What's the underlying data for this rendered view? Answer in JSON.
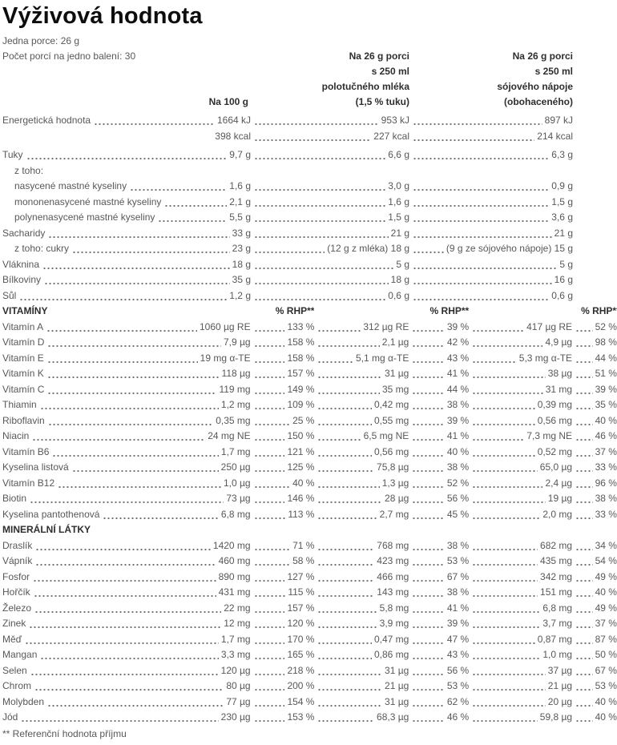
{
  "title": "Výživová hodnota",
  "colors": {
    "body_text": "#58585a",
    "heading_text": "#2e2e30",
    "title_text": "#0d0d0d"
  },
  "header": {
    "serving_line1": "Jedna porce: 26 g",
    "serving_line2": "Počet porcí na jedno balení: 30",
    "col1": "Na 100 g",
    "col2_lines": [
      "Na 26 g porci",
      "s 250 ml",
      "polotučného mléka",
      "(1,5 % tuku)"
    ],
    "col3_lines": [
      "Na 26 g porci",
      "s 250 ml",
      "sójového nápoje",
      "(obohaceného)"
    ]
  },
  "table": {
    "rhp_header": "% RHP**",
    "rows": [
      {
        "label": "Energetická hodnota",
        "kind": "g3",
        "c": [
          "1664 kJ",
          "953 kJ",
          "897 kJ"
        ]
      },
      {
        "label": "",
        "kind": "g3",
        "noLead1": true,
        "c": [
          "398 kcal",
          "227 kcal",
          "214 kcal"
        ]
      },
      {
        "label": "Tuky",
        "kind": "g3",
        "gap": true,
        "c": [
          "9,7 g",
          "6,6 g",
          "6,3 g"
        ]
      },
      {
        "label": "z toho:",
        "kind": "label",
        "indent": 1
      },
      {
        "label": "nasycené mastné kyseliny",
        "kind": "g3",
        "indent": 1,
        "c": [
          "1,6 g",
          "3,0 g",
          "0,9 g"
        ]
      },
      {
        "label": "mononenasycené mastné kyseliny",
        "kind": "g3",
        "indent": 1,
        "c": [
          "2,1 g",
          "1,6 g",
          "1,5 g"
        ]
      },
      {
        "label": "polynenasycené mastné kyseliny",
        "kind": "g3",
        "indent": 1,
        "c": [
          "5,5 g",
          "1,5 g",
          "3,6 g"
        ]
      },
      {
        "label": "Sacharidy",
        "kind": "g3",
        "c": [
          "33 g",
          "21 g",
          "21 g"
        ]
      },
      {
        "label": "z toho: cukry",
        "kind": "g3",
        "indent": 1,
        "c": [
          "23 g",
          "(12 g z mléka) 18 g",
          "(9 g ze sójového nápoje) 15 g"
        ]
      },
      {
        "label": "Vláknina",
        "kind": "g3",
        "c": [
          "18 g",
          "5 g",
          "5 g"
        ]
      },
      {
        "label": "Bílkoviny",
        "kind": "g3",
        "c": [
          "35 g",
          "18 g",
          "16 g"
        ]
      },
      {
        "label": "Sůl",
        "kind": "g3",
        "c": [
          "1,2 g",
          "0,6 g",
          "0,6 g"
        ]
      },
      {
        "label": "VITAMÍNY",
        "kind": "sechdr"
      },
      {
        "label": "Vitamín A",
        "kind": "g6",
        "c": [
          "1060 µg RE",
          "133 %",
          "312 µg RE",
          "39 %",
          "417 µg RE",
          "52 %"
        ]
      },
      {
        "label": "Vitamín D",
        "kind": "g6",
        "c": [
          "7,9 µg",
          "158 %",
          "2,1 µg",
          "42 %",
          "4,9 µg",
          "98 %"
        ]
      },
      {
        "label": "Vitamín E",
        "kind": "g6",
        "c": [
          "19 mg α-TE",
          "158 %",
          "5,1 mg α-TE",
          "43 %",
          "5,3 mg α-TE",
          "44 %"
        ]
      },
      {
        "label": "Vitamín K",
        "kind": "g6",
        "c": [
          "118 µg",
          "157 %",
          "31 µg",
          "41 %",
          "38 µg",
          "51 %"
        ]
      },
      {
        "label": "Vitamín C",
        "kind": "g6",
        "c": [
          "119 mg",
          "149 %",
          "35 mg",
          "44 %",
          "31 mg",
          "39 %"
        ]
      },
      {
        "label": "Thiamin",
        "kind": "g6",
        "c": [
          "1,2 mg",
          "109 %",
          "0,42 mg",
          "38 %",
          "0,39 mg",
          "35 %"
        ]
      },
      {
        "label": "Riboflavin",
        "kind": "g6",
        "c": [
          "0,35 mg",
          "25 %",
          "0,55 mg",
          "39 %",
          "0,56 mg",
          "40 %"
        ]
      },
      {
        "label": "Niacin",
        "kind": "g6",
        "c": [
          "24 mg NE",
          "150 %",
          "6,5 mg NE",
          "41 %",
          "7,3 mg NE",
          "46 %"
        ]
      },
      {
        "label": "Vitamín B6",
        "kind": "g6",
        "c": [
          "1,7 mg",
          "121 %",
          "0,56 mg",
          "40 %",
          "0,52 mg",
          "37 %"
        ]
      },
      {
        "label": "Kyselina listová",
        "kind": "g6",
        "c": [
          "250 µg",
          "125 %",
          "75,8 µg",
          "38 %",
          "65,0 µg",
          "33 %"
        ]
      },
      {
        "label": "Vitamín B12",
        "kind": "g6",
        "c": [
          "1,0 µg",
          "40 %",
          "1,3 µg",
          "52 %",
          "2,4 µg",
          "96 %"
        ]
      },
      {
        "label": "Biotin",
        "kind": "g6",
        "c": [
          "73 µg",
          "146 %",
          "28 µg",
          "56 %",
          "19 µg",
          "38 %"
        ]
      },
      {
        "label": "Kyselina pantothenová",
        "kind": "g6",
        "c": [
          "6,8 mg",
          "113 %",
          "2,7 mg",
          "45 %",
          "2,0 mg",
          "33 %"
        ]
      },
      {
        "label": "MINERÁLNÍ LÁTKY",
        "kind": "sec"
      },
      {
        "label": "Draslík",
        "kind": "g6",
        "c": [
          "1420 mg",
          "71 %",
          "768 mg",
          "38 %",
          "682 mg",
          "34 %"
        ]
      },
      {
        "label": "Vápník",
        "kind": "g6",
        "c": [
          "460 mg",
          "58 %",
          "423 mg",
          "53 %",
          "435 mg",
          "54 %"
        ]
      },
      {
        "label": "Fosfor",
        "kind": "g6",
        "c": [
          "890 mg",
          "127 %",
          "466 mg",
          "67 %",
          "342 mg",
          "49 %"
        ]
      },
      {
        "label": "Hořčík",
        "kind": "g6",
        "c": [
          "431 mg",
          "115 %",
          "143 mg",
          "38 %",
          "151 mg",
          "40 %"
        ]
      },
      {
        "label": "Železo",
        "kind": "g6",
        "c": [
          "22 mg",
          "157 %",
          "5,8 mg",
          "41 %",
          "6,8 mg",
          "49 %"
        ]
      },
      {
        "label": "Zinek",
        "kind": "g6",
        "c": [
          "12 mg",
          "120 %",
          "3,9 mg",
          "39 %",
          "3,7 mg",
          "37 %"
        ]
      },
      {
        "label": "Měď",
        "kind": "g6",
        "c": [
          "1,7 mg",
          "170 %",
          "0,47 mg",
          "47 %",
          "0,87 mg",
          "87 %"
        ]
      },
      {
        "label": "Mangan",
        "kind": "g6",
        "c": [
          "3,3 mg",
          "165 %",
          "0,86 mg",
          "43 %",
          "1,0 mg",
          "50 %"
        ]
      },
      {
        "label": "Selen",
        "kind": "g6",
        "c": [
          "120 µg",
          "218 %",
          "31 µg",
          "56 %",
          "37 µg",
          "67 %"
        ]
      },
      {
        "label": "Chrom",
        "kind": "g6",
        "c": [
          "80 µg",
          "200 %",
          "21 µg",
          "53 %",
          "21 µg",
          "53 %"
        ]
      },
      {
        "label": "Molybden",
        "kind": "g6",
        "c": [
          "77 µg",
          "154 %",
          "31 µg",
          "62 %",
          "20 µg",
          "40 %"
        ]
      },
      {
        "label": "Jód",
        "kind": "g6",
        "c": [
          "230 µg",
          "153 %",
          "68,3 µg",
          "46 %",
          "59,8 µg",
          "40 %"
        ]
      }
    ]
  },
  "footnote": "** Referenční hodnota příjmu"
}
